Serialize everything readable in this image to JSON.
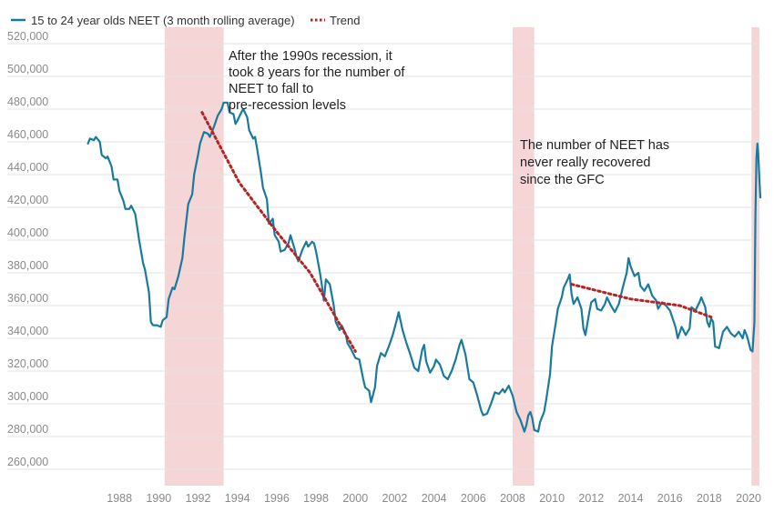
{
  "chart_data": {
    "type": "line",
    "title": "",
    "xlabel": "",
    "ylabel": "",
    "xlim": [
      1986.0,
      2020.6
    ],
    "ylim": [
      250000,
      530000
    ],
    "grid": true,
    "legend_position": "top-left",
    "colors": {
      "series": "#1a7a9e",
      "trend": "#b32424",
      "recession": "#f6d5d7"
    },
    "y_ticks": [
      {
        "value": 260000,
        "label": "260,000"
      },
      {
        "value": 280000,
        "label": "280,000"
      },
      {
        "value": 300000,
        "label": "300,000"
      },
      {
        "value": 320000,
        "label": "320,000"
      },
      {
        "value": 340000,
        "label": "340,000"
      },
      {
        "value": 360000,
        "label": "360,000"
      },
      {
        "value": 380000,
        "label": "380,000"
      },
      {
        "value": 400000,
        "label": "400,000"
      },
      {
        "value": 420000,
        "label": "420,000"
      },
      {
        "value": 440000,
        "label": "440,000"
      },
      {
        "value": 460000,
        "label": "460,000"
      },
      {
        "value": 480000,
        "label": "480,000"
      },
      {
        "value": 500000,
        "label": "500,000"
      },
      {
        "value": 520000,
        "label": "520,000"
      }
    ],
    "x_ticks": [
      {
        "value": 1988,
        "label": "1988"
      },
      {
        "value": 1990,
        "label": "1990"
      },
      {
        "value": 1992,
        "label": "1992"
      },
      {
        "value": 1994,
        "label": "1994"
      },
      {
        "value": 1996,
        "label": "1996"
      },
      {
        "value": 1998,
        "label": "1998"
      },
      {
        "value": 2000,
        "label": "2000"
      },
      {
        "value": 2002,
        "label": "2002"
      },
      {
        "value": 2004,
        "label": "2004"
      },
      {
        "value": 2006,
        "label": "2006"
      },
      {
        "value": 2008,
        "label": "2008"
      },
      {
        "value": 2010,
        "label": "2010"
      },
      {
        "value": 2012,
        "label": "2012"
      },
      {
        "value": 2014,
        "label": "2014"
      },
      {
        "value": 2016,
        "label": "2016"
      },
      {
        "value": 2018,
        "label": "2018"
      },
      {
        "value": 2020,
        "label": "2020"
      }
    ],
    "recession_bands": [
      {
        "start": 1990.3,
        "end": 1993.3
      },
      {
        "start": 2008.0,
        "end": 2009.1
      },
      {
        "start": 2020.15,
        "end": 2020.55
      }
    ],
    "series": [
      {
        "name": "15 to 24 year olds NEET (3 month rolling average)",
        "points": [
          [
            1986.4,
            459000
          ],
          [
            1986.5,
            462000
          ],
          [
            1986.7,
            461000
          ],
          [
            1986.8,
            463000
          ],
          [
            1987.0,
            460000
          ],
          [
            1987.1,
            452000
          ],
          [
            1987.3,
            450000
          ],
          [
            1987.4,
            451000
          ],
          [
            1987.6,
            445000
          ],
          [
            1987.7,
            437000
          ],
          [
            1987.9,
            437000
          ],
          [
            1988.0,
            430000
          ],
          [
            1988.2,
            424000
          ],
          [
            1988.3,
            419000
          ],
          [
            1988.5,
            419000
          ],
          [
            1988.6,
            421000
          ],
          [
            1988.8,
            416000
          ],
          [
            1989.0,
            400000
          ],
          [
            1989.2,
            386000
          ],
          [
            1989.3,
            382000
          ],
          [
            1989.5,
            368000
          ],
          [
            1989.6,
            350000
          ],
          [
            1989.7,
            348000
          ],
          [
            1989.9,
            348000
          ],
          [
            1990.1,
            347000
          ],
          [
            1990.2,
            351000
          ],
          [
            1990.4,
            353000
          ],
          [
            1990.5,
            364000
          ],
          [
            1990.7,
            371000
          ],
          [
            1990.8,
            370000
          ],
          [
            1991.0,
            378000
          ],
          [
            1991.2,
            389000
          ],
          [
            1991.3,
            401000
          ],
          [
            1991.5,
            422000
          ],
          [
            1991.7,
            428000
          ],
          [
            1991.8,
            440000
          ],
          [
            1992.0,
            452000
          ],
          [
            1992.1,
            459000
          ],
          [
            1992.3,
            466000
          ],
          [
            1992.5,
            465000
          ],
          [
            1992.6,
            463000
          ],
          [
            1992.8,
            469000
          ],
          [
            1993.0,
            476000
          ],
          [
            1993.2,
            480000
          ],
          [
            1993.3,
            484000
          ],
          [
            1993.5,
            484000
          ],
          [
            1993.6,
            478000
          ],
          [
            1993.8,
            477000
          ],
          [
            1993.9,
            471000
          ],
          [
            1994.0,
            473000
          ],
          [
            1994.2,
            478000
          ],
          [
            1994.3,
            480000
          ],
          [
            1994.5,
            475000
          ],
          [
            1994.6,
            467000
          ],
          [
            1994.8,
            462000
          ],
          [
            1994.9,
            463000
          ],
          [
            1995.0,
            456000
          ],
          [
            1995.2,
            441000
          ],
          [
            1995.3,
            432000
          ],
          [
            1995.5,
            425000
          ],
          [
            1995.6,
            410000
          ],
          [
            1995.8,
            413000
          ],
          [
            1995.9,
            403000
          ],
          [
            1996.1,
            399000
          ],
          [
            1996.2,
            393000
          ],
          [
            1996.4,
            394000
          ],
          [
            1996.6,
            398000
          ],
          [
            1996.7,
            403000
          ],
          [
            1996.9,
            395000
          ],
          [
            1997.0,
            390000
          ],
          [
            1997.1,
            387000
          ],
          [
            1997.3,
            394000
          ],
          [
            1997.5,
            399000
          ],
          [
            1997.6,
            396000
          ],
          [
            1997.8,
            399000
          ],
          [
            1997.9,
            398000
          ],
          [
            1998.0,
            393000
          ],
          [
            1998.2,
            380000
          ],
          [
            1998.3,
            372000
          ],
          [
            1998.4,
            363000
          ],
          [
            1998.5,
            376000
          ],
          [
            1998.7,
            373000
          ],
          [
            1998.9,
            360000
          ],
          [
            1999.0,
            350000
          ],
          [
            1999.2,
            345000
          ],
          [
            1999.3,
            348000
          ],
          [
            1999.5,
            343000
          ],
          [
            1999.6,
            337000
          ],
          [
            1999.8,
            333000
          ],
          [
            2000.0,
            328000
          ],
          [
            2000.2,
            327000
          ],
          [
            2000.4,
            315000
          ],
          [
            2000.5,
            310000
          ],
          [
            2000.7,
            308000
          ],
          [
            2000.8,
            301000
          ],
          [
            2001.0,
            310000
          ],
          [
            2001.1,
            323000
          ],
          [
            2001.3,
            331000
          ],
          [
            2001.5,
            329000
          ],
          [
            2001.7,
            335000
          ],
          [
            2001.9,
            342000
          ],
          [
            2002.1,
            351000
          ],
          [
            2002.2,
            356000
          ],
          [
            2002.4,
            345000
          ],
          [
            2002.6,
            337000
          ],
          [
            2002.8,
            330000
          ],
          [
            2003.0,
            322000
          ],
          [
            2003.2,
            320000
          ],
          [
            2003.4,
            333000
          ],
          [
            2003.5,
            336000
          ],
          [
            2003.6,
            326000
          ],
          [
            2003.8,
            319000
          ],
          [
            2004.0,
            323000
          ],
          [
            2004.1,
            327000
          ],
          [
            2004.3,
            324000
          ],
          [
            2004.5,
            317000
          ],
          [
            2004.7,
            315000
          ],
          [
            2004.9,
            320000
          ],
          [
            2005.1,
            327000
          ],
          [
            2005.3,
            336000
          ],
          [
            2005.4,
            339000
          ],
          [
            2005.6,
            330000
          ],
          [
            2005.8,
            315000
          ],
          [
            2006.0,
            313000
          ],
          [
            2006.2,
            305000
          ],
          [
            2006.4,
            296000
          ],
          [
            2006.5,
            293000
          ],
          [
            2006.7,
            294000
          ],
          [
            2006.9,
            300000
          ],
          [
            2007.1,
            307000
          ],
          [
            2007.3,
            306000
          ],
          [
            2007.5,
            309000
          ],
          [
            2007.6,
            307000
          ],
          [
            2007.8,
            311000
          ],
          [
            2008.0,
            305000
          ],
          [
            2008.2,
            295000
          ],
          [
            2008.4,
            290000
          ],
          [
            2008.6,
            283000
          ],
          [
            2008.7,
            287000
          ],
          [
            2008.8,
            293000
          ],
          [
            2008.9,
            295000
          ],
          [
            2009.0,
            291000
          ],
          [
            2009.1,
            284000
          ],
          [
            2009.3,
            283000
          ],
          [
            2009.4,
            289000
          ],
          [
            2009.6,
            295000
          ],
          [
            2009.7,
            302000
          ],
          [
            2009.9,
            318000
          ],
          [
            2010.0,
            335000
          ],
          [
            2010.2,
            350000
          ],
          [
            2010.3,
            358000
          ],
          [
            2010.5,
            365000
          ],
          [
            2010.6,
            371000
          ],
          [
            2010.8,
            376000
          ],
          [
            2010.9,
            379000
          ],
          [
            2011.0,
            367000
          ],
          [
            2011.1,
            361000
          ],
          [
            2011.3,
            365000
          ],
          [
            2011.5,
            358000
          ],
          [
            2011.6,
            346000
          ],
          [
            2011.7,
            342000
          ],
          [
            2011.9,
            356000
          ],
          [
            2012.0,
            362000
          ],
          [
            2012.2,
            364000
          ],
          [
            2012.3,
            358000
          ],
          [
            2012.5,
            357000
          ],
          [
            2012.7,
            361000
          ],
          [
            2012.8,
            365000
          ],
          [
            2013.0,
            360000
          ],
          [
            2013.2,
            356000
          ],
          [
            2013.4,
            361000
          ],
          [
            2013.6,
            371000
          ],
          [
            2013.8,
            380000
          ],
          [
            2013.9,
            389000
          ],
          [
            2014.0,
            384000
          ],
          [
            2014.2,
            378000
          ],
          [
            2014.4,
            380000
          ],
          [
            2014.5,
            372000
          ],
          [
            2014.7,
            369000
          ],
          [
            2014.9,
            373000
          ],
          [
            2015.1,
            366000
          ],
          [
            2015.3,
            363000
          ],
          [
            2015.4,
            358000
          ],
          [
            2015.6,
            362000
          ],
          [
            2015.8,
            360000
          ],
          [
            2016.0,
            357000
          ],
          [
            2016.2,
            350000
          ],
          [
            2016.3,
            346000
          ],
          [
            2016.4,
            340000
          ],
          [
            2016.6,
            347000
          ],
          [
            2016.8,
            342000
          ],
          [
            2017.0,
            346000
          ],
          [
            2017.1,
            359000
          ],
          [
            2017.3,
            357000
          ],
          [
            2017.5,
            362000
          ],
          [
            2017.6,
            365000
          ],
          [
            2017.8,
            359000
          ],
          [
            2017.9,
            350000
          ],
          [
            2018.0,
            347000
          ],
          [
            2018.1,
            352000
          ],
          [
            2018.2,
            350000
          ],
          [
            2018.3,
            335000
          ],
          [
            2018.5,
            334000
          ],
          [
            2018.7,
            344000
          ],
          [
            2018.9,
            347000
          ],
          [
            2019.1,
            343000
          ],
          [
            2019.3,
            341000
          ],
          [
            2019.5,
            344000
          ],
          [
            2019.7,
            340000
          ],
          [
            2019.8,
            345000
          ],
          [
            2019.9,
            342000
          ],
          [
            2020.0,
            338000
          ],
          [
            2020.1,
            333000
          ],
          [
            2020.2,
            332000
          ],
          [
            2020.3,
            350000
          ],
          [
            2020.35,
            415000
          ],
          [
            2020.4,
            450000
          ],
          [
            2020.45,
            459000
          ],
          [
            2020.5,
            452000
          ],
          [
            2020.55,
            438000
          ],
          [
            2020.6,
            426000
          ]
        ]
      },
      {
        "name": "Trend",
        "points": [
          [
            1992.2,
            478000
          ],
          [
            1994.1,
            435000
          ],
          [
            1996.0,
            405000
          ],
          [
            1997.7,
            380000
          ],
          [
            2000.0,
            332000
          ]
        ]
      },
      {
        "name": "Trend",
        "points": [
          [
            2011.0,
            373000
          ],
          [
            2014.0,
            364000
          ],
          [
            2016.5,
            360000
          ],
          [
            2018.1,
            353000
          ]
        ]
      }
    ]
  },
  "legend": {
    "series_label": "15 to 24 year olds NEET (3 month rolling average)",
    "trend_label": "Trend"
  },
  "annotations": {
    "nineties": [
      "After the 1990s recession, it",
      "took 8 years for the number of",
      "NEET to fall to",
      "pre-recession levels"
    ],
    "gfc": [
      "The number of NEET has",
      "never really recovered",
      "since the GFC"
    ]
  }
}
